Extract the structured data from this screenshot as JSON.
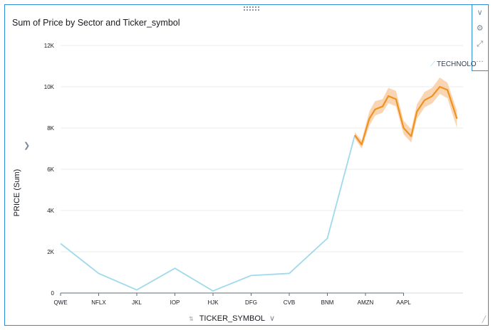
{
  "visual": {
    "title": "Sum of Price by Sector and Ticker_symbol",
    "toolbar": [
      {
        "name": "collapse-icon",
        "glyph": "∨"
      },
      {
        "name": "settings-gear-icon",
        "glyph": "⚙"
      },
      {
        "name": "expand-icon",
        "glyph": "⤢"
      },
      {
        "name": "more-options-icon",
        "glyph": "…"
      }
    ]
  },
  "chart_data": {
    "type": "line",
    "title": "Sum of Price by Sector and Ticker_symbol",
    "xlabel": "TICKER_SYMBOL",
    "ylabel": "PRICE (Sum)",
    "ylim": [
      0,
      12000
    ],
    "yticks": [
      0,
      2000,
      4000,
      6000,
      8000,
      10000,
      12000
    ],
    "ytick_labels": [
      "0",
      "2K",
      "4K",
      "6K",
      "8K",
      "10K",
      "12K"
    ],
    "categories": [
      "QWE",
      "NFLX",
      "JKL",
      "IOP",
      "HJK",
      "DFG",
      "CVB",
      "BNM",
      "AMZN",
      "AAPL"
    ],
    "grid": true,
    "legend_position": "top-right",
    "series": [
      {
        "name": "TECHNOLO",
        "color": "#9fd9ec",
        "x": [
          0,
          1,
          2,
          3,
          4,
          5,
          6,
          7,
          7.72
        ],
        "y": [
          2400,
          950,
          150,
          1200,
          100,
          850,
          950,
          2650,
          7650
        ]
      },
      {
        "color": "#f0921e",
        "band_color": "#f7c79a",
        "x": [
          7.72,
          7.9,
          8.1,
          8.25,
          8.45,
          8.6,
          8.8,
          9.0,
          9.2,
          9.35,
          9.55,
          9.75,
          9.95,
          10.15,
          10.4
        ],
        "y": [
          7650,
          7200,
          8450,
          8900,
          9050,
          9550,
          9400,
          8000,
          7600,
          8800,
          9350,
          9550,
          10000,
          9850,
          8450
        ],
        "lower": [
          7500,
          7000,
          8100,
          8600,
          8750,
          9200,
          9050,
          7700,
          7300,
          8450,
          9000,
          9200,
          9650,
          9450,
          8000
        ],
        "upper": [
          7800,
          7400,
          8800,
          9300,
          9400,
          9950,
          9800,
          8350,
          7950,
          9150,
          9750,
          9950,
          10450,
          10200,
          8850
        ]
      }
    ]
  }
}
